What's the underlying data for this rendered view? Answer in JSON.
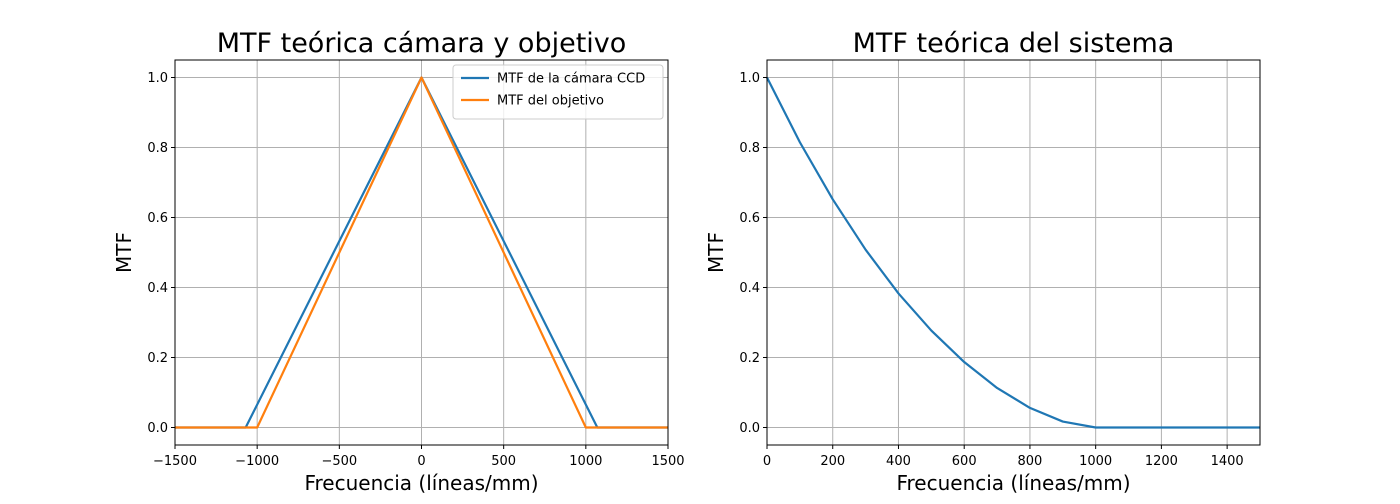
{
  "chart_data": [
    {
      "type": "line",
      "title": "MTF teórica cámara y objetivo",
      "xlabel": "Frecuencia (líneas/mm)",
      "ylabel": "MTF",
      "xlim": [
        -1500,
        1500
      ],
      "ylim": [
        -0.05,
        1.05
      ],
      "xticks": [
        -1500,
        -1000,
        -500,
        0,
        500,
        1000,
        1500
      ],
      "xtick_labels": [
        "−1500",
        "−1000",
        "−500",
        "0",
        "500",
        "1000",
        "1500"
      ],
      "yticks": [
        0.0,
        0.2,
        0.4,
        0.6,
        0.8,
        1.0
      ],
      "ytick_labels": [
        "0.0",
        "0.2",
        "0.4",
        "0.6",
        "0.8",
        "1.0"
      ],
      "grid": true,
      "legend_position": "top-right",
      "series": [
        {
          "name": "MTF de la cámara CCD",
          "color": "#1f77b4",
          "x": [
            -1500,
            -1070,
            0,
            1070,
            1500
          ],
          "y": [
            0,
            0,
            1,
            0,
            0
          ]
        },
        {
          "name": "MTF del objetivo",
          "color": "#ff7f0e",
          "x": [
            -1500,
            -1000,
            0,
            1000,
            1500
          ],
          "y": [
            0,
            0,
            1,
            0,
            0
          ]
        }
      ]
    },
    {
      "type": "line",
      "title": "MTF teórica del sistema",
      "xlabel": "Frecuencia (líneas/mm)",
      "ylabel": "MTF",
      "xlim": [
        0,
        1500
      ],
      "ylim": [
        -0.05,
        1.05
      ],
      "xticks": [
        0,
        200,
        400,
        600,
        800,
        1000,
        1200,
        1400
      ],
      "xtick_labels": [
        "0",
        "200",
        "400",
        "600",
        "800",
        "1000",
        "1200",
        "1400"
      ],
      "yticks": [
        0.0,
        0.2,
        0.4,
        0.6,
        0.8,
        1.0
      ],
      "ytick_labels": [
        "0.0",
        "0.2",
        "0.4",
        "0.6",
        "0.8",
        "1.0"
      ],
      "grid": true,
      "series": [
        {
          "color": "#1f77b4",
          "x": [
            0,
            100,
            200,
            300,
            400,
            500,
            600,
            700,
            800,
            900,
            1000,
            1100,
            1200,
            1300,
            1400,
            1500
          ],
          "y": [
            1.0,
            0.815,
            0.652,
            0.508,
            0.383,
            0.277,
            0.187,
            0.113,
            0.056,
            0.017,
            0.0,
            0.0,
            0.0,
            0.0,
            0.0,
            0.0
          ]
        }
      ]
    }
  ]
}
